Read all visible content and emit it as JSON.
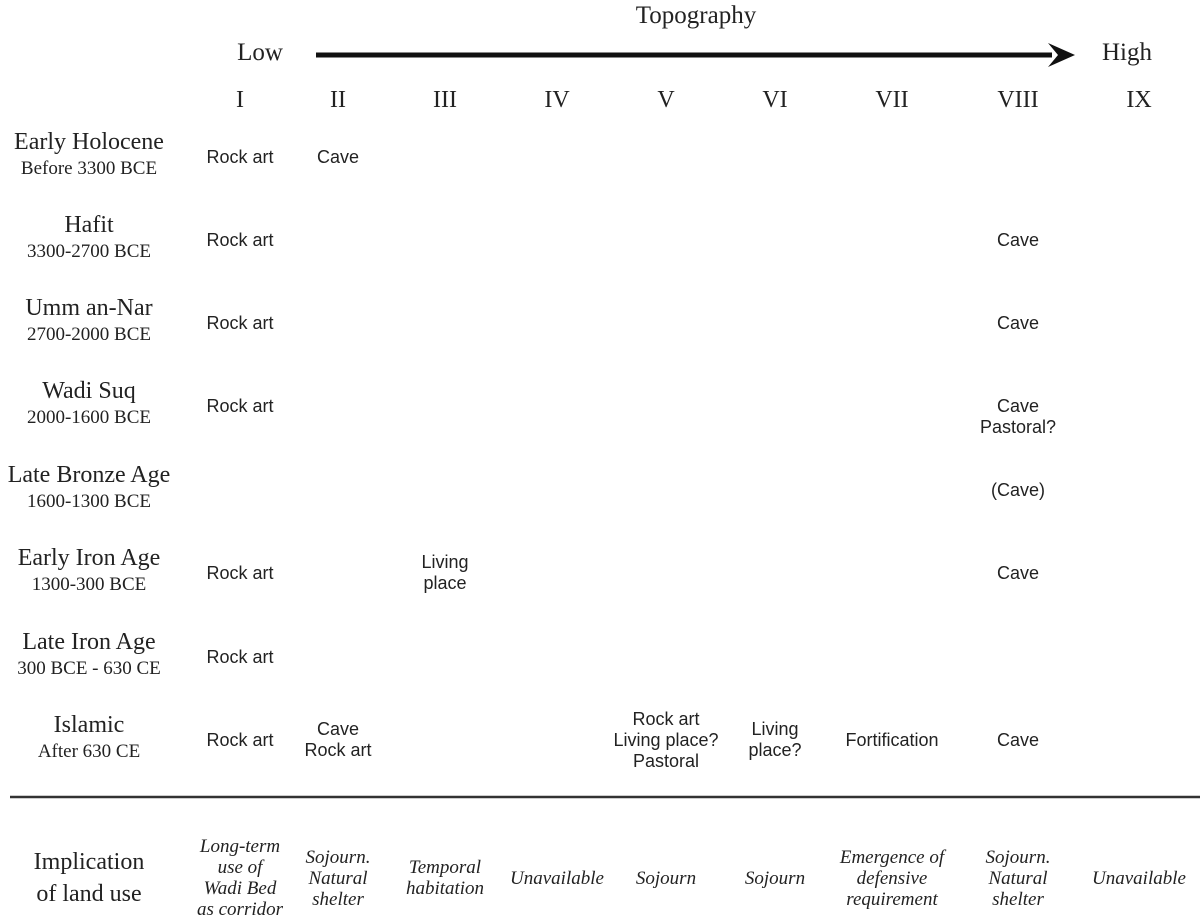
{
  "topography": {
    "title": "Topography",
    "low": "Low",
    "high": "High"
  },
  "zones": [
    "I",
    "II",
    "III",
    "IV",
    "V",
    "VI",
    "VII",
    "VIII",
    "IX"
  ],
  "periods": [
    {
      "name": "Early Holocene",
      "dates": "Before 3300 BCE"
    },
    {
      "name": "Hafit",
      "dates": "3300-2700 BCE"
    },
    {
      "name": "Umm an-Nar",
      "dates": "2700-2000 BCE"
    },
    {
      "name": "Wadi Suq",
      "dates": "2000-1600 BCE"
    },
    {
      "name": "Late Bronze Age",
      "dates": "1600-1300 BCE"
    },
    {
      "name": "Early Iron Age",
      "dates": "1300-300 BCE"
    },
    {
      "name": "Late Iron Age",
      "dates": "300 BCE - 630 CE"
    },
    {
      "name": "Islamic",
      "dates": "After 630 CE"
    }
  ],
  "cells": [
    {
      "row": 0,
      "col": 0,
      "lines": [
        "Rock art"
      ]
    },
    {
      "row": 0,
      "col": 1,
      "lines": [
        "Cave"
      ]
    },
    {
      "row": 1,
      "col": 0,
      "lines": [
        "Rock art"
      ]
    },
    {
      "row": 1,
      "col": 7,
      "lines": [
        "Cave"
      ]
    },
    {
      "row": 2,
      "col": 0,
      "lines": [
        "Rock art"
      ]
    },
    {
      "row": 2,
      "col": 7,
      "lines": [
        "Cave"
      ]
    },
    {
      "row": 3,
      "col": 0,
      "lines": [
        "Rock art"
      ]
    },
    {
      "row": 3,
      "col": 7,
      "lines": [
        "Cave",
        "Pastoral?"
      ]
    },
    {
      "row": 4,
      "col": 7,
      "lines": [
        "(Cave)"
      ]
    },
    {
      "row": 5,
      "col": 0,
      "lines": [
        "Rock art"
      ]
    },
    {
      "row": 5,
      "col": 2,
      "lines": [
        "Living",
        "place"
      ]
    },
    {
      "row": 5,
      "col": 7,
      "lines": [
        "Cave"
      ]
    },
    {
      "row": 6,
      "col": 0,
      "lines": [
        "Rock art"
      ]
    },
    {
      "row": 7,
      "col": 0,
      "lines": [
        "Rock art"
      ]
    },
    {
      "row": 7,
      "col": 1,
      "lines": [
        "Cave",
        "Rock art"
      ]
    },
    {
      "row": 7,
      "col": 4,
      "lines": [
        "Rock art",
        "Living place?",
        "Pastoral"
      ]
    },
    {
      "row": 7,
      "col": 5,
      "lines": [
        "Living",
        "place?"
      ]
    },
    {
      "row": 7,
      "col": 6,
      "lines": [
        "Fortification"
      ]
    },
    {
      "row": 7,
      "col": 7,
      "lines": [
        "Cave"
      ]
    }
  ],
  "implication": {
    "label": [
      "Implication",
      "of land use"
    ],
    "values": [
      [
        "Long-term",
        "use of",
        "Wadi Bed",
        "as corridor"
      ],
      [
        "Sojourn.",
        "Natural",
        "shelter"
      ],
      [
        "Temporal",
        "habitation"
      ],
      [
        "Unavailable"
      ],
      [
        "Sojourn"
      ],
      [
        "Sojourn"
      ],
      [
        "Emergence of",
        "defensive",
        "requirement"
      ],
      [
        "Sojourn.",
        "Natural",
        "shelter"
      ],
      [
        "Unavailable"
      ]
    ]
  }
}
